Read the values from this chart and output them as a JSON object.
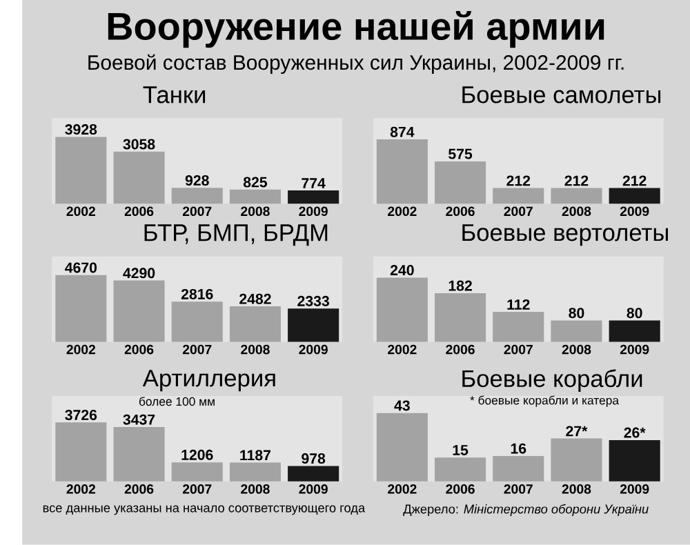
{
  "chart_data": [
    {
      "type": "other",
      "title": "Вооружение нашей армии",
      "subtitle": "Боевой состав Вооруженных сил Украины, 2002-2009 гг."
    },
    {
      "type": "bar",
      "title": "Танки",
      "categories": [
        "2002",
        "2006",
        "2007",
        "2008",
        "2009"
      ],
      "values": [
        3928,
        3058,
        928,
        825,
        774
      ],
      "colors": [
        "#a3a3a3",
        "#a3a3a3",
        "#a3a3a3",
        "#a3a3a3",
        "#1a1a1a"
      ],
      "data_labels": true
    },
    {
      "type": "bar",
      "title": "Боевые самолеты",
      "categories": [
        "2002",
        "2006",
        "2007",
        "2008",
        "2009"
      ],
      "values": [
        874,
        575,
        212,
        212,
        212
      ],
      "colors": [
        "#a3a3a3",
        "#a3a3a3",
        "#a3a3a3",
        "#a3a3a3",
        "#1a1a1a"
      ],
      "data_labels": true
    },
    {
      "type": "bar",
      "title": "БТР, БМП, БРДМ",
      "categories": [
        "2002",
        "2006",
        "2007",
        "2008",
        "2009"
      ],
      "values": [
        4670,
        4290,
        2816,
        2482,
        2333
      ],
      "colors": [
        "#a3a3a3",
        "#a3a3a3",
        "#a3a3a3",
        "#a3a3a3",
        "#1a1a1a"
      ],
      "data_labels": true
    },
    {
      "type": "bar",
      "title": "Боевые вертолеты",
      "categories": [
        "2002",
        "2006",
        "2007",
        "2008",
        "2009"
      ],
      "values": [
        240,
        182,
        112,
        80,
        80
      ],
      "colors": [
        "#a3a3a3",
        "#a3a3a3",
        "#a3a3a3",
        "#a3a3a3",
        "#1a1a1a"
      ],
      "data_labels": true
    },
    {
      "type": "bar",
      "title": "Артиллерия",
      "subtitle": "более 100 мм",
      "categories": [
        "2002",
        "2006",
        "2007",
        "2008",
        "2009"
      ],
      "values": [
        3726,
        3437,
        1206,
        1187,
        978
      ],
      "colors": [
        "#a3a3a3",
        "#a3a3a3",
        "#a3a3a3",
        "#a3a3a3",
        "#1a1a1a"
      ],
      "data_labels": true,
      "annotations": [
        "все данные указаны на начало соответствующего года"
      ]
    },
    {
      "type": "bar",
      "title": "Боевые корабли",
      "subtitle": "* боевые корабли и катера",
      "categories": [
        "2002",
        "2006",
        "2007",
        "2008",
        "2009"
      ],
      "values": [
        43,
        15,
        16,
        27,
        26
      ],
      "value_labels": [
        "43",
        "15",
        "16",
        "27*",
        "26*"
      ],
      "colors": [
        "#a3a3a3",
        "#a3a3a3",
        "#a3a3a3",
        "#a3a3a3",
        "#1a1a1a"
      ],
      "annotations": [
        "Джерело: *Міністерство оборони України*"
      ]
    }
  ]
}
